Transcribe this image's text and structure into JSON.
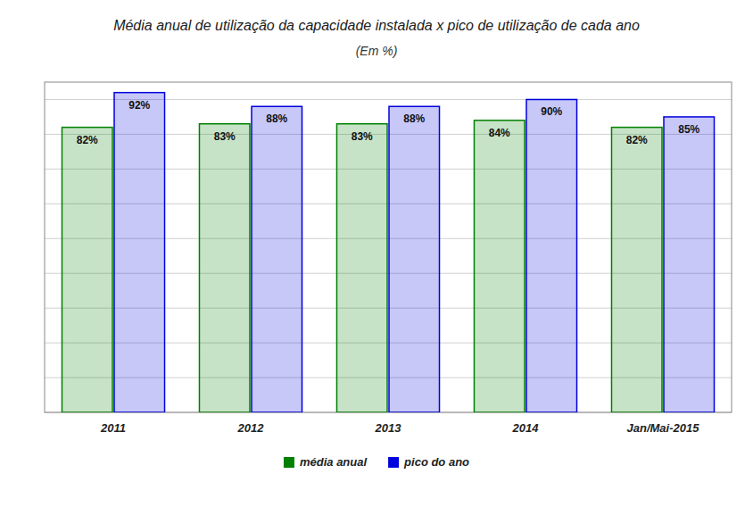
{
  "chart_data": {
    "type": "bar",
    "title": "Média anual de utilização da capacidade instalada x pico de utilização de cada ano",
    "subtitle": "(Em %)",
    "categories": [
      "2011",
      "2012",
      "2013",
      "2014",
      "Jan/Mai-2015"
    ],
    "series": [
      {
        "name": "média anual",
        "color": "#008000",
        "values": [
          82,
          83,
          83,
          84,
          82
        ],
        "value_labels": [
          "82%",
          "83%",
          "83%",
          "84%",
          "82%"
        ]
      },
      {
        "name": "pico do ano",
        "color": "#0000dd",
        "values": [
          92,
          88,
          88,
          90,
          85
        ],
        "value_labels": [
          "92%",
          "88%",
          "88%",
          "90%",
          "85%"
        ]
      }
    ],
    "ylim": [
      0,
      95
    ],
    "yticks": [
      0,
      10,
      20,
      30,
      40,
      50,
      60,
      70,
      80,
      90
    ],
    "grid": true,
    "legend": "bottom",
    "data_labels": true,
    "tick_labels": "x"
  }
}
